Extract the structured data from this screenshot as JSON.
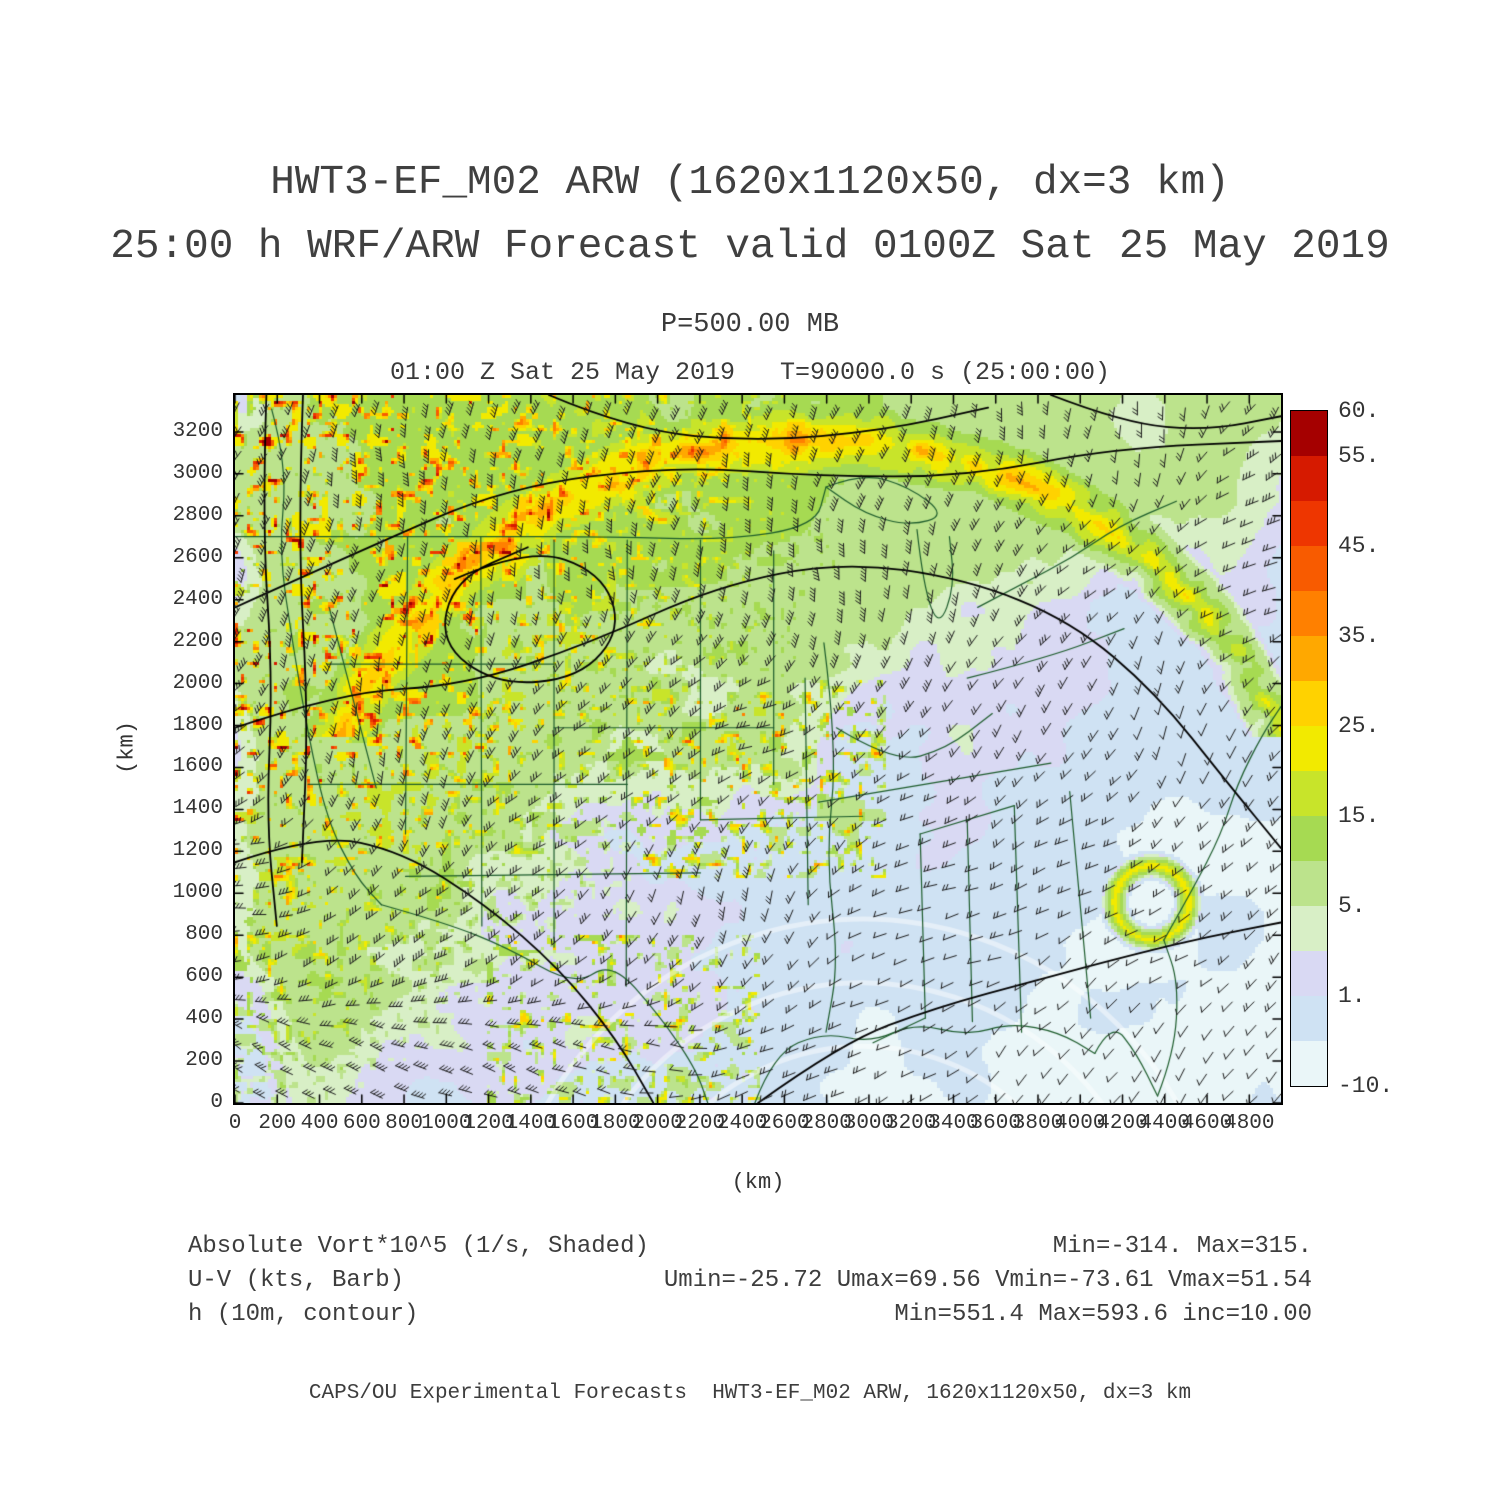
{
  "page": {
    "title_line1": "HWT3-EF_M02 ARW (1620x1120x50, dx=3 km)",
    "title_line2": "25:00 h WRF/ARW Forecast valid 0100Z Sat 25 May 2019",
    "pressure_label": "P=500.00 MB",
    "plot_header": "01:00 Z Sat 25 May 2019   T=90000.0 s (25:00:00)",
    "footer": "CAPS/OU Experimental Forecasts  HWT3-EF_M02 ARW, 1620x1120x50, dx=3 km"
  },
  "axes": {
    "x_label": "(km)",
    "y_label": "(km)"
  },
  "legend": {
    "row1_left": "Absolute Vort*10^5 (1/s, Shaded)",
    "row1_right": "Min=-314. Max=315.",
    "row2_left": "U-V (kts, Barb)",
    "row2_right": "Umin=-25.72 Umax=69.56 Vmin=-73.61 Vmax=51.54",
    "row3_left": "h (10m, contour)",
    "row3_right": "Min=551.4 Max=593.6 inc=10.00"
  },
  "chart_data": {
    "type": "heatmap",
    "title": "HWT3-EF_M02 ARW (1620x1120x50, dx=3 km)",
    "subtitle": "25:00 h WRF/ARW Forecast valid 0100Z Sat 25 May 2019",
    "pressure_level_mb": 500.0,
    "valid_time": "01:00 Z Sat 25 May 2019",
    "model_time": "T=90000.0 s (25:00:00)",
    "forecast_hour": "25:00 h",
    "x": {
      "label": "(km)",
      "min": 0,
      "max": 4950,
      "ticks": [
        0,
        200,
        400,
        600,
        800,
        1000,
        1200,
        1400,
        1600,
        1800,
        2000,
        2200,
        2400,
        2600,
        2800,
        3000,
        3200,
        3400,
        3600,
        3800,
        4000,
        4200,
        4400,
        4600,
        4800
      ]
    },
    "y": {
      "label": "(km)",
      "min": 0,
      "max": 3376,
      "ticks": [
        0,
        200,
        400,
        600,
        800,
        1000,
        1200,
        1400,
        1600,
        1800,
        2000,
        2200,
        2400,
        2600,
        2800,
        3000,
        3200
      ]
    },
    "shaded_field": {
      "name": "Absolute Vort*10^5",
      "units": "1/s",
      "min": -314,
      "max": 315
    },
    "wind_barbs": {
      "units": "kts",
      "umin": -25.72,
      "umax": 69.56,
      "vmin": -73.61,
      "vmax": 51.54
    },
    "height_contours": {
      "name": "h",
      "units": "10m",
      "min": 551.4,
      "max": 593.6,
      "inc": 10.0
    },
    "colorbar": {
      "levels": [
        -10,
        -5,
        1,
        3,
        5,
        10,
        15,
        20,
        25,
        30,
        35,
        40,
        45,
        50,
        55,
        60
      ],
      "colors": [
        "#EAF6F8",
        "#CFE2F3",
        "#D9D9F3",
        "#D8EFC6",
        "#BCE38C",
        "#A6DA52",
        "#C8E42A",
        "#F2EA00",
        "#FFD200",
        "#FFA800",
        "#FF8000",
        "#F85B00",
        "#EE3600",
        "#D61A00",
        "#A50000"
      ],
      "labels": [
        "60.",
        "55.",
        "45.",
        "35.",
        "25.",
        "15.",
        "5.",
        "1.",
        "-10."
      ],
      "labeled_levels": [
        60,
        55,
        45,
        35,
        25,
        15,
        5,
        1,
        -10
      ],
      "position": "right"
    },
    "map_region": "Continental United States, state borders (dark green), 500 mb height contours (black), wind barbs (black)"
  }
}
